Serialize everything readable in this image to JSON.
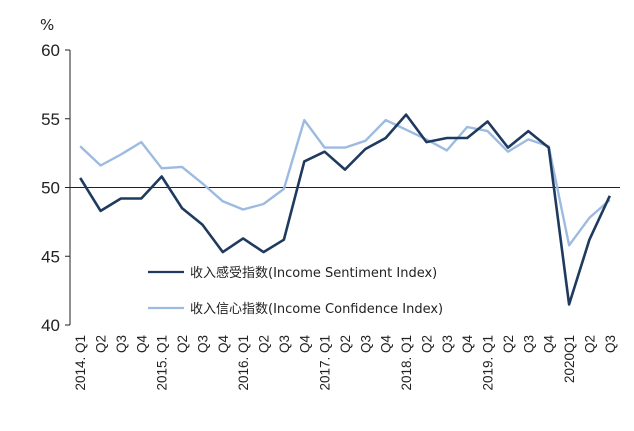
{
  "chart_data": {
    "type": "line",
    "unit_label": "%",
    "ylim": [
      40,
      60
    ],
    "yticks": [
      40,
      45,
      50,
      55,
      60
    ],
    "reference_line": 50,
    "categories": [
      "2014. Q1",
      "Q2",
      "Q3",
      "Q4",
      "2015. Q1",
      "Q2",
      "Q3",
      "Q4",
      "2016. Q1",
      "Q2",
      "Q3",
      "Q4",
      "2017. Q1",
      "Q2",
      "Q3",
      "Q4",
      "2018. Q1",
      "Q2",
      "Q3",
      "Q4",
      "2019. Q1",
      "Q2",
      "Q3",
      "Q4",
      "2020Q1",
      "Q2",
      "Q3"
    ],
    "series": [
      {
        "name": "收入感受指数(Income Sentiment Index)",
        "color": "#1f3a5f",
        "values": [
          50.7,
          48.3,
          49.2,
          49.2,
          50.8,
          48.5,
          47.3,
          45.3,
          46.3,
          45.3,
          46.2,
          51.9,
          52.6,
          51.3,
          52.8,
          53.6,
          55.3,
          53.3,
          53.6,
          53.6,
          54.8,
          52.9,
          54.1,
          52.9,
          41.5,
          46.2,
          49.4
        ]
      },
      {
        "name": "收入信心指数(Income Confidence Index)",
        "color": "#9dbbe0",
        "values": [
          53.0,
          51.6,
          52.4,
          53.3,
          51.4,
          51.5,
          50.3,
          49.0,
          48.4,
          48.8,
          49.9,
          54.9,
          52.9,
          52.9,
          53.4,
          54.9,
          54.2,
          53.5,
          52.7,
          54.4,
          54.1,
          52.6,
          53.5,
          53.0,
          45.8,
          47.8,
          49.1
        ]
      }
    ]
  }
}
